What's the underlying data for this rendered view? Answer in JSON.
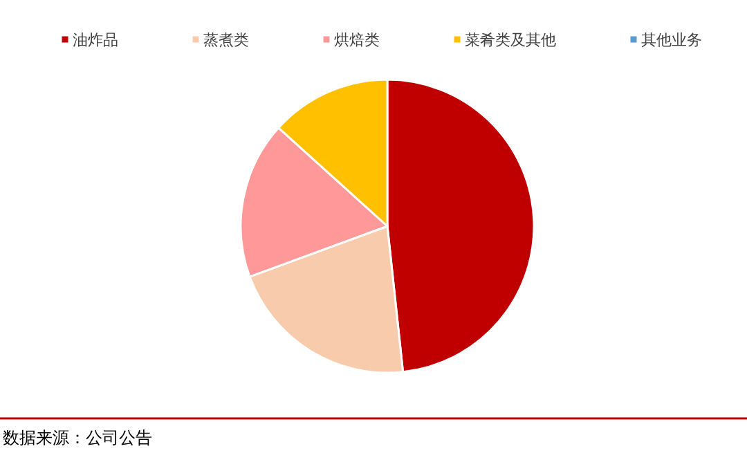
{
  "chart_data": {
    "type": "pie",
    "categories": [
      "油炸品",
      "蒸煮类",
      "烘焙类",
      "菜肴类及其他",
      "其他业务"
    ],
    "values": [
      48.3,
      21.1,
      17.3,
      13.3,
      0
    ],
    "colors": [
      "#c00000",
      "#f8cbad",
      "#ff9999",
      "#ffc000",
      "#5b9bd5"
    ],
    "legend": "top",
    "annotations": [
      "数据来源：公司公告"
    ]
  }
}
